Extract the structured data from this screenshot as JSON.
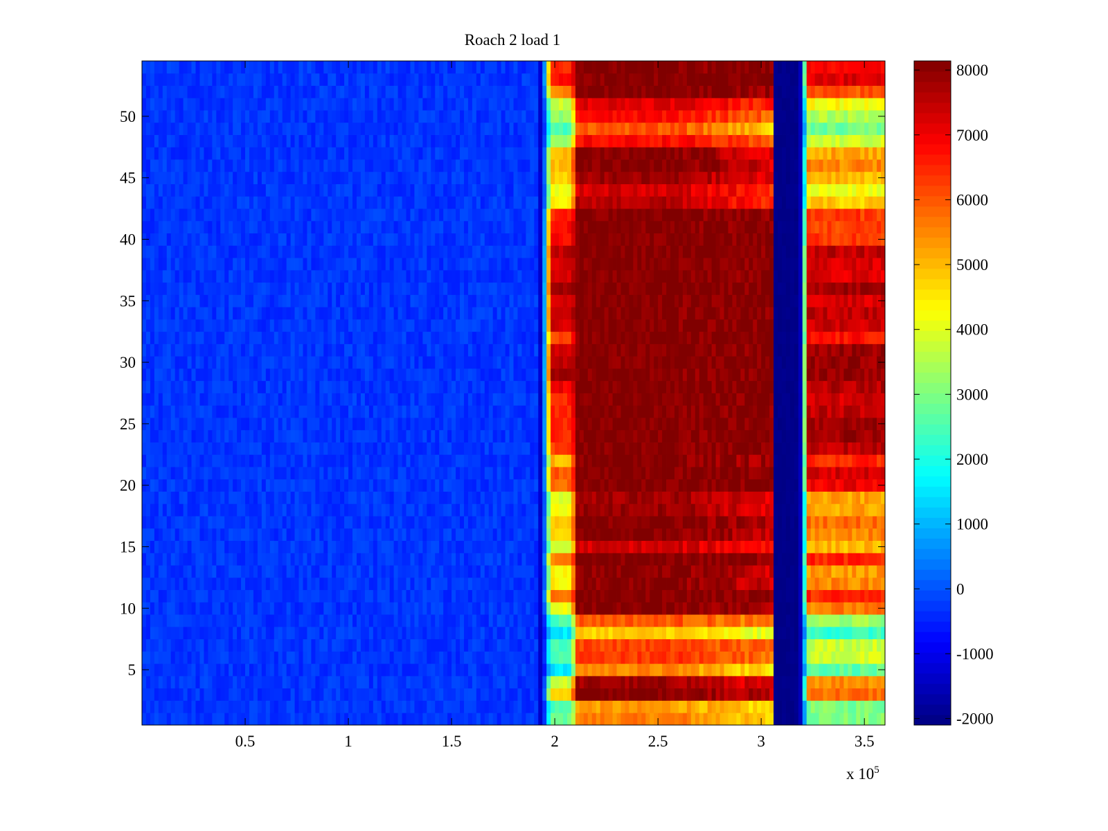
{
  "chart_data": {
    "type": "heatmap",
    "title": "Roach 2 load 1",
    "xlabel": "",
    "ylabel": "",
    "x_exponent_label": "x 10",
    "x_exponent": "5",
    "xlim": [
      0,
      3.6
    ],
    "ylim": [
      0.5,
      54.5
    ],
    "x_ticks": [
      0.5,
      1,
      1.5,
      2,
      2.5,
      3,
      3.5
    ],
    "x_tick_labels": [
      "0.5",
      "1",
      "1.5",
      "2",
      "2.5",
      "3",
      "3.5"
    ],
    "y_ticks": [
      5,
      10,
      15,
      20,
      25,
      30,
      35,
      40,
      45,
      50
    ],
    "y_tick_labels": [
      "5",
      "10",
      "15",
      "20",
      "25",
      "30",
      "35",
      "40",
      "45",
      "50"
    ],
    "colormap": "jet",
    "clim": [
      -2100,
      8140
    ],
    "colorbar_ticks": [
      -2000,
      -1000,
      0,
      1000,
      2000,
      3000,
      4000,
      5000,
      6000,
      7000,
      8000
    ],
    "colorbar_tick_labels": [
      "-2000",
      "-1000",
      "0",
      "1000",
      "2000",
      "3000",
      "4000",
      "5000",
      "6000",
      "7000",
      "8000"
    ],
    "rows": [
      1,
      2,
      3,
      4,
      5,
      6,
      7,
      8,
      9,
      10,
      11,
      12,
      13,
      14,
      15,
      16,
      17,
      18,
      19,
      20,
      21,
      22,
      23,
      24,
      25,
      26,
      27,
      28,
      29,
      30,
      31,
      32,
      33,
      34,
      35,
      36,
      37,
      38,
      39,
      40,
      41,
      42,
      43,
      44,
      45,
      46,
      47,
      48,
      49,
      50,
      51,
      52,
      53,
      54
    ],
    "segments_x_1e5": {
      "baseline": [
        0,
        1.92
      ],
      "onset_edge": [
        1.98,
        2.08
      ],
      "main": [
        2.11,
        3.06
      ],
      "dip": [
        3.06,
        3.19
      ],
      "recovery": [
        3.23,
        3.6
      ]
    },
    "baseline_value": -300,
    "dip_value": -2000,
    "row_values": {
      "onset_edge": [
        2800,
        2500,
        4800,
        3800,
        1500,
        2500,
        2500,
        1500,
        2500,
        4200,
        5800,
        4400,
        4400,
        5500,
        3800,
        4600,
        4800,
        4200,
        4000,
        5800,
        6000,
        5000,
        6300,
        6500,
        6500,
        6500,
        6500,
        7000,
        7800,
        7500,
        7300,
        6200,
        7300,
        7500,
        7200,
        7800,
        7300,
        7300,
        7500,
        6800,
        6800,
        6500,
        4400,
        4200,
        4800,
        5000,
        5000,
        3200,
        2500,
        3200,
        3800,
        5500,
        6800,
        6500
      ],
      "main_left": [
        5600,
        5300,
        8100,
        7800,
        5500,
        6300,
        6200,
        4800,
        6000,
        8100,
        8100,
        8000,
        8000,
        8100,
        7300,
        8100,
        8100,
        7900,
        7800,
        8100,
        8100,
        8100,
        8100,
        8100,
        8100,
        8100,
        8100,
        8100,
        8100,
        8100,
        8100,
        8100,
        8100,
        8100,
        8100,
        8100,
        8100,
        8100,
        8100,
        8100,
        8100,
        8100,
        7600,
        7300,
        7800,
        8100,
        8100,
        6800,
        6000,
        6800,
        7200,
        8100,
        8100,
        8100
      ],
      "main_right": [
        4600,
        4500,
        7500,
        7000,
        4500,
        5800,
        5800,
        3800,
        5500,
        7700,
        8100,
        7300,
        7300,
        8000,
        6800,
        7500,
        7600,
        7000,
        7000,
        8100,
        8100,
        7700,
        8100,
        8100,
        8100,
        8100,
        8100,
        8100,
        8100,
        8100,
        8100,
        8100,
        8100,
        8100,
        8100,
        8100,
        8100,
        8100,
        8100,
        8100,
        8000,
        8000,
        6300,
        6500,
        7000,
        7200,
        7000,
        5800,
        4800,
        5800,
        6500,
        7900,
        8100,
        8100
      ],
      "recovery": [
        3000,
        3000,
        5800,
        5500,
        2700,
        3800,
        3800,
        2300,
        3300,
        5600,
        6500,
        5500,
        5300,
        6500,
        5000,
        5500,
        5800,
        5200,
        5200,
        7000,
        7300,
        6500,
        7500,
        7900,
        7800,
        7500,
        7300,
        7600,
        7900,
        7900,
        7900,
        6700,
        7400,
        7500,
        7300,
        7800,
        7200,
        7300,
        7500,
        6300,
        6200,
        6300,
        4800,
        4200,
        5000,
        5500,
        5200,
        3800,
        2900,
        3500,
        4300,
        6000,
        7200,
        6800
      ]
    }
  }
}
